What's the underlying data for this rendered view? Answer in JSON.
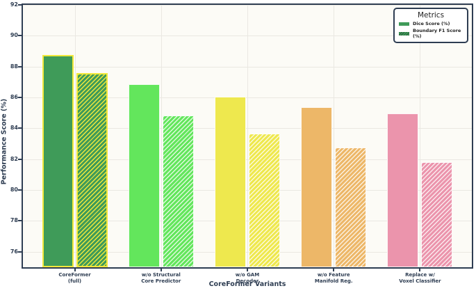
{
  "chart_data": {
    "type": "bar",
    "title": "",
    "xlabel": "CoreFormer Variants",
    "ylabel": "Performance Score (%)",
    "ylim": [
      75,
      92
    ],
    "yticks": [
      76,
      78,
      80,
      82,
      84,
      86,
      88,
      90,
      92
    ],
    "grid": true,
    "categories": [
      "CoreFormer\n(full)",
      "w/o Structural\nCore Predictor",
      "w/o GAM\nDecoder",
      "w/o Feature\nManifold Reg.",
      "Replace w/\nVoxel Classifier"
    ],
    "series": [
      {
        "name": "Dice Score (%)",
        "style": "solid",
        "values": [
          88.75,
          86.85,
          86.05,
          85.35,
          84.95
        ]
      },
      {
        "name": "Boundary F1 Score (%)",
        "style": "hatched",
        "values": [
          87.6,
          84.85,
          83.65,
          82.75,
          81.8
        ]
      }
    ],
    "bar_colors": [
      "#3f9b59",
      "#63e65c",
      "#eee84e",
      "#edb768",
      "#eb94ac"
    ],
    "highlight": {
      "category_index": 0,
      "edge_color": "#f2e93c"
    },
    "legend": {
      "title": "Metrics",
      "position": "upper right",
      "entries": [
        "Dice Score (%)",
        "Boundary F1 Score (%)"
      ]
    },
    "colors": {
      "axis_and_text": "#2e3d52",
      "plot_background": "#fcfbf6",
      "gridline": "#eae8e2"
    }
  }
}
